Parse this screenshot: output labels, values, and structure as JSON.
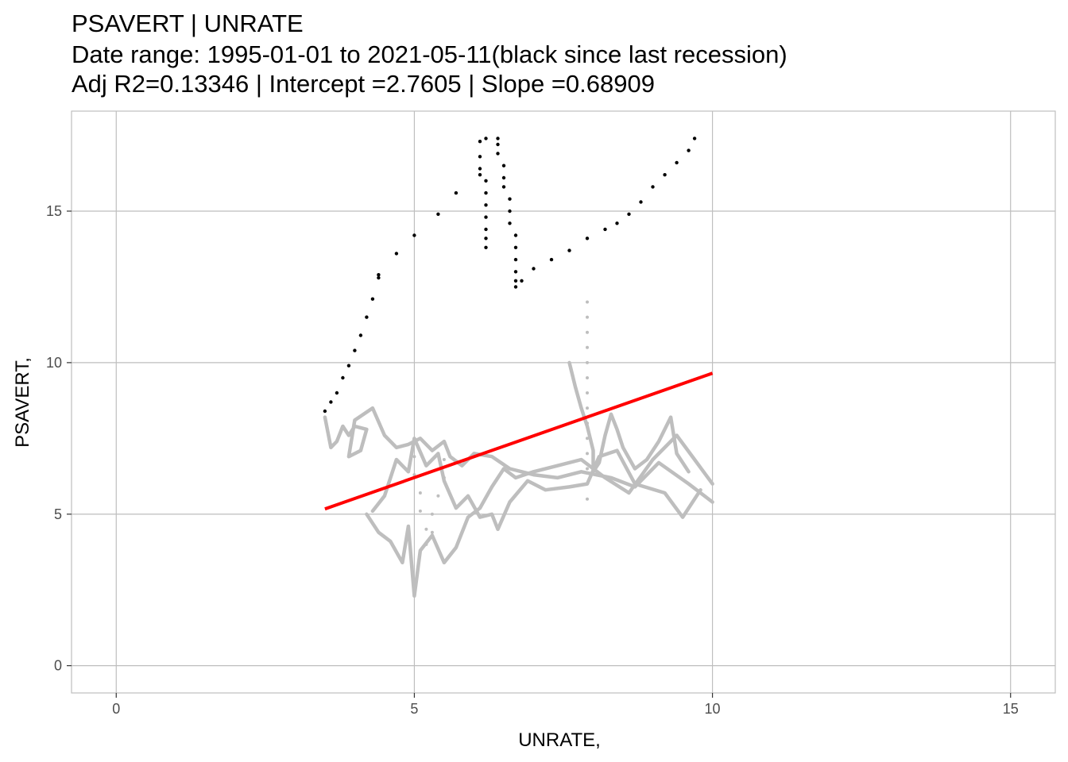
{
  "chart_data": {
    "type": "scatter",
    "title": "PSAVERT  |  UNRATE",
    "subtitle_lines": [
      "Date range: 1995-01-01 to 2021-05-11(black since last recession)",
      "Adj R2=0.13346 | Intercept =2.7605 | Slope =0.68909"
    ],
    "xlabel": "UNRATE,",
    "ylabel": "PSAVERT,",
    "xlim": [
      -0.75,
      15.75
    ],
    "ylim": [
      -0.9,
      18.3
    ],
    "x_ticks": [
      0,
      5,
      10,
      15
    ],
    "y_ticks": [
      0,
      5,
      10,
      15
    ],
    "grid": true,
    "colors": {
      "recent": "#000000",
      "earlier": "#bebebe",
      "fit": "#ff0000",
      "grid": "#bebebe",
      "tick_text": "#4d4d4d"
    },
    "regression": {
      "intercept": 2.7605,
      "slope": 0.68909,
      "x_range": [
        3.5,
        10.0
      ]
    },
    "series": [
      {
        "role": "earlier",
        "style": "thick-path",
        "points": [
          [
            3.5,
            8.2
          ],
          [
            3.6,
            7.2
          ],
          [
            3.7,
            7.4
          ],
          [
            3.8,
            7.9
          ],
          [
            3.9,
            7.6
          ],
          [
            4.0,
            7.9
          ],
          [
            4.2,
            7.8
          ],
          [
            4.1,
            7.1
          ],
          [
            3.9,
            6.9
          ],
          [
            4.0,
            8.1
          ],
          [
            4.3,
            8.5
          ],
          [
            4.5,
            7.6
          ],
          [
            4.7,
            7.2
          ],
          [
            4.9,
            7.3
          ],
          [
            5.1,
            7.5
          ],
          [
            5.3,
            7.1
          ],
          [
            5.5,
            7.4
          ],
          [
            5.6,
            6.9
          ],
          [
            5.8,
            6.6
          ],
          [
            6.0,
            7.0
          ],
          [
            6.3,
            6.9
          ],
          [
            6.6,
            6.5
          ],
          [
            7.0,
            6.3
          ],
          [
            7.4,
            6.2
          ],
          [
            7.8,
            6.4
          ],
          [
            8.3,
            6.2
          ],
          [
            8.7,
            5.9
          ],
          [
            9.1,
            6.7
          ],
          [
            9.6,
            6.0
          ],
          [
            10.0,
            5.4
          ]
        ]
      },
      {
        "role": "earlier",
        "style": "thick-path",
        "points": [
          [
            4.2,
            5.0
          ],
          [
            4.4,
            4.4
          ],
          [
            4.6,
            4.1
          ],
          [
            4.8,
            3.4
          ],
          [
            4.9,
            4.6
          ],
          [
            5.0,
            2.3
          ],
          [
            5.1,
            3.8
          ],
          [
            5.3,
            4.3
          ],
          [
            5.5,
            3.4
          ],
          [
            5.7,
            3.9
          ],
          [
            5.9,
            4.9
          ],
          [
            6.1,
            5.2
          ],
          [
            6.3,
            5.9
          ],
          [
            6.5,
            6.5
          ],
          [
            6.7,
            6.2
          ],
          [
            7.0,
            6.4
          ],
          [
            7.4,
            6.6
          ],
          [
            7.8,
            6.8
          ],
          [
            8.2,
            6.2
          ],
          [
            8.6,
            5.7
          ],
          [
            9.0,
            6.8
          ],
          [
            9.4,
            7.6
          ],
          [
            9.7,
            6.8
          ],
          [
            10.0,
            6.0
          ]
        ]
      },
      {
        "role": "earlier",
        "style": "thick-path",
        "points": [
          [
            4.3,
            5.1
          ],
          [
            4.5,
            5.6
          ],
          [
            4.7,
            6.8
          ],
          [
            4.9,
            6.4
          ],
          [
            5.0,
            7.5
          ],
          [
            5.2,
            6.6
          ],
          [
            5.4,
            7.0
          ],
          [
            5.5,
            6.1
          ],
          [
            5.7,
            5.2
          ],
          [
            5.9,
            5.6
          ],
          [
            6.1,
            4.9
          ],
          [
            6.3,
            5.0
          ],
          [
            6.4,
            4.5
          ],
          [
            6.6,
            5.4
          ],
          [
            6.9,
            6.1
          ],
          [
            7.2,
            5.8
          ],
          [
            7.6,
            5.9
          ],
          [
            7.9,
            6.0
          ],
          [
            8.1,
            6.9
          ],
          [
            8.4,
            7.1
          ],
          [
            8.7,
            6.0
          ],
          [
            9.2,
            5.7
          ],
          [
            9.5,
            4.9
          ],
          [
            9.8,
            5.8
          ]
        ]
      },
      {
        "role": "earlier",
        "style": "thick-path",
        "points": [
          [
            7.6,
            10.0
          ],
          [
            7.7,
            9.2
          ],
          [
            7.8,
            8.5
          ],
          [
            7.9,
            7.9
          ],
          [
            8.0,
            7.1
          ],
          [
            8.0,
            6.4
          ],
          [
            8.1,
            6.7
          ],
          [
            8.2,
            7.6
          ],
          [
            8.3,
            8.3
          ],
          [
            8.4,
            7.8
          ],
          [
            8.5,
            7.2
          ],
          [
            8.7,
            6.5
          ],
          [
            8.9,
            6.8
          ],
          [
            9.1,
            7.4
          ],
          [
            9.3,
            8.2
          ],
          [
            9.4,
            7.0
          ],
          [
            9.6,
            6.4
          ]
        ]
      },
      {
        "role": "earlier",
        "style": "dots",
        "points": [
          [
            5.0,
            6.9
          ],
          [
            5.0,
            6.3
          ],
          [
            5.1,
            5.7
          ],
          [
            5.1,
            5.1
          ],
          [
            5.2,
            4.5
          ],
          [
            5.2,
            4.0
          ],
          [
            5.3,
            4.4
          ],
          [
            5.3,
            5.0
          ],
          [
            5.4,
            5.6
          ],
          [
            5.5,
            6.2
          ],
          [
            5.5,
            6.8
          ],
          [
            7.9,
            12.0
          ],
          [
            7.9,
            11.5
          ],
          [
            7.9,
            11.0
          ],
          [
            7.9,
            10.5
          ],
          [
            7.9,
            10.0
          ],
          [
            7.9,
            9.5
          ],
          [
            7.9,
            9.0
          ],
          [
            7.9,
            8.5
          ],
          [
            7.9,
            8.0
          ],
          [
            7.9,
            7.5
          ],
          [
            7.9,
            7.0
          ],
          [
            7.9,
            6.5
          ],
          [
            7.9,
            6.0
          ],
          [
            7.9,
            5.5
          ]
        ]
      },
      {
        "role": "recent",
        "style": "dots",
        "points": [
          [
            3.5,
            8.4
          ],
          [
            3.6,
            8.7
          ],
          [
            3.7,
            9.0
          ],
          [
            3.8,
            9.5
          ],
          [
            3.9,
            9.9
          ],
          [
            4.0,
            10.4
          ],
          [
            4.1,
            10.9
          ],
          [
            4.2,
            11.5
          ],
          [
            4.3,
            12.1
          ],
          [
            4.4,
            12.8
          ],
          [
            4.4,
            12.9
          ],
          [
            4.7,
            13.6
          ],
          [
            5.0,
            14.2
          ],
          [
            5.4,
            14.9
          ],
          [
            5.7,
            15.6
          ],
          [
            6.1,
            16.2
          ],
          [
            6.1,
            17.3
          ],
          [
            6.1,
            16.8
          ],
          [
            6.1,
            16.4
          ],
          [
            6.2,
            17.4
          ],
          [
            6.2,
            16.0
          ],
          [
            6.2,
            15.6
          ],
          [
            6.2,
            15.2
          ],
          [
            6.2,
            14.8
          ],
          [
            6.2,
            14.4
          ],
          [
            6.2,
            14.1
          ],
          [
            6.2,
            13.8
          ],
          [
            6.4,
            17.4
          ],
          [
            6.4,
            17.2
          ],
          [
            6.4,
            16.9
          ],
          [
            6.5,
            16.5
          ],
          [
            6.5,
            16.1
          ],
          [
            6.5,
            15.8
          ],
          [
            6.6,
            15.4
          ],
          [
            6.6,
            15.0
          ],
          [
            6.6,
            14.6
          ],
          [
            6.7,
            14.2
          ],
          [
            6.7,
            13.8
          ],
          [
            6.7,
            13.4
          ],
          [
            6.7,
            13.0
          ],
          [
            6.7,
            12.7
          ],
          [
            6.7,
            12.5
          ],
          [
            6.8,
            12.7
          ],
          [
            7.0,
            13.1
          ],
          [
            7.3,
            13.4
          ],
          [
            7.6,
            13.7
          ],
          [
            7.9,
            14.1
          ],
          [
            8.2,
            14.4
          ],
          [
            8.4,
            14.6
          ],
          [
            8.6,
            14.9
          ],
          [
            8.8,
            15.3
          ],
          [
            9.0,
            15.8
          ],
          [
            9.2,
            16.2
          ],
          [
            9.4,
            16.6
          ],
          [
            9.6,
            17.0
          ],
          [
            9.7,
            17.4
          ]
        ]
      }
    ]
  }
}
